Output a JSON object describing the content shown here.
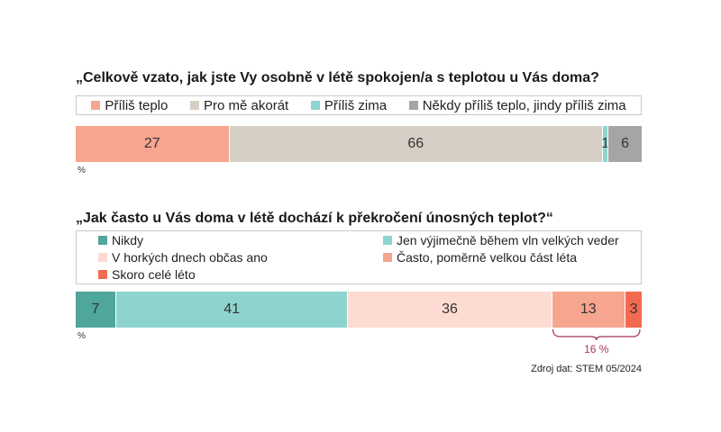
{
  "source": "Zdroj dat: STEM 05/2024",
  "percent_label": "%",
  "chart_data": [
    {
      "type": "bar",
      "stacked": true,
      "orientation": "horizontal",
      "title": "„Celkově vzato, jak jste Vy osobně v létě spokojen/a s teplotou u Vás doma?",
      "legend": [
        "Příliš teplo",
        "Pro mě akorát",
        "Příliš zima",
        "Někdy příliš teplo, jindy příliš zima"
      ],
      "series": [
        {
          "name": "Příliš teplo",
          "value": 27,
          "label": "27",
          "color": "#f6a58f"
        },
        {
          "name": "Pro mě akorát",
          "value": 66,
          "label": "66",
          "color": "#d6cfc5"
        },
        {
          "name": "Příliš zima",
          "value": 1,
          "label": "1",
          "color": "#8ed4ce"
        },
        {
          "name": "Někdy příliš teplo, jindy příliš zima",
          "value": 6,
          "label": "6",
          "color": "#a5a5a5"
        }
      ],
      "unit": "%"
    },
    {
      "type": "bar",
      "stacked": true,
      "orientation": "horizontal",
      "title": "„Jak často u Vás doma v létě dochází k překročení únosných teplot?“",
      "legend": [
        "Nikdy",
        "Jen výjimečně během vln velkých veder",
        "V horkých dnech občas ano",
        "Často, poměrně velkou část léta",
        "Skoro celé léto"
      ],
      "series": [
        {
          "name": "Nikdy",
          "value": 7,
          "label": "7",
          "color": "#4fa69a"
        },
        {
          "name": "Jen výjimečně během vln velkých veder",
          "value": 41,
          "label": "41",
          "color": "#8ed4ce"
        },
        {
          "name": "V horkých dnech občas ano",
          "value": 36,
          "label": "36",
          "color": "#fddbd2"
        },
        {
          "name": "Často, poměrně velkou část léta",
          "value": 13,
          "label": "13",
          "color": "#f6a58f"
        },
        {
          "name": "Skoro celé léto",
          "value": 3,
          "label": "3",
          "color": "#f26b50"
        }
      ],
      "annotation": {
        "label": "16 %",
        "spans": [
          "Často, poměrně velkou část léta",
          "Skoro celé léto"
        ],
        "color": "#a3365a"
      },
      "unit": "%"
    }
  ]
}
